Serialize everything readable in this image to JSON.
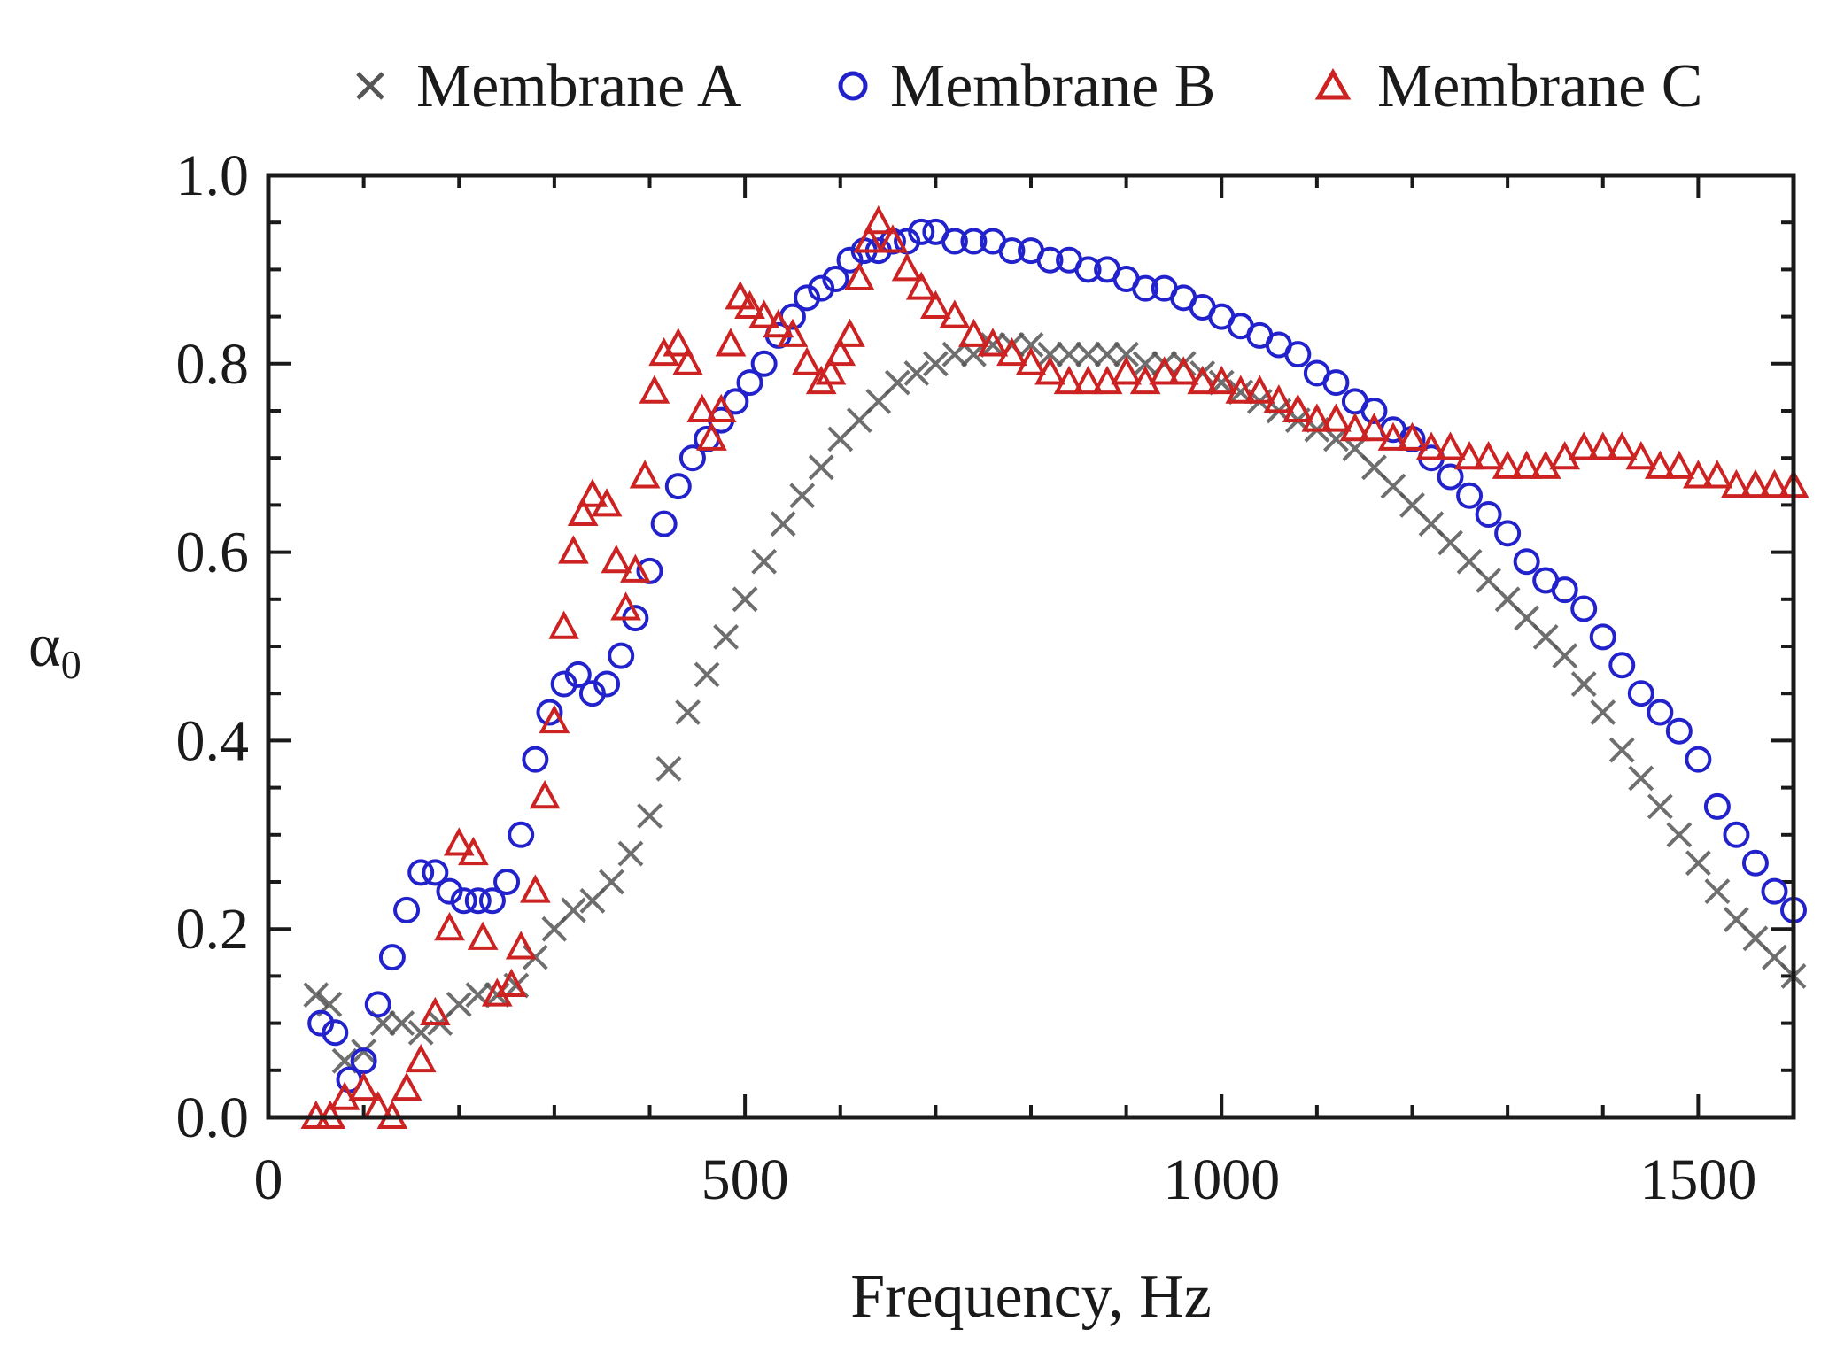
{
  "chart_data": {
    "type": "scatter",
    "title": "",
    "xlabel": "Frequency, Hz",
    "ylabel": "α",
    "ylabel_subscript": "0",
    "xlim": [
      0,
      1600
    ],
    "ylim": [
      0.0,
      1.0
    ],
    "x_ticks": [
      0,
      500,
      1000,
      1500
    ],
    "x_tick_labels": [
      "0",
      "500",
      "1000",
      "1500"
    ],
    "y_ticks": [
      0.0,
      0.2,
      0.4,
      0.6,
      0.8,
      1.0
    ],
    "y_tick_labels": [
      "0.0",
      "0.2",
      "0.4",
      "0.6",
      "0.8",
      "1.0"
    ],
    "grid": false,
    "legend_position": "top",
    "series": [
      {
        "name": "Membrane A",
        "marker": "x",
        "color": "#555555",
        "points": [
          [
            50,
            0.13
          ],
          [
            64,
            0.12
          ],
          [
            80,
            0.06
          ],
          [
            100,
            0.07
          ],
          [
            120,
            0.1
          ],
          [
            140,
            0.1
          ],
          [
            160,
            0.09
          ],
          [
            180,
            0.1
          ],
          [
            200,
            0.12
          ],
          [
            220,
            0.13
          ],
          [
            240,
            0.13
          ],
          [
            260,
            0.14
          ],
          [
            280,
            0.17
          ],
          [
            300,
            0.2
          ],
          [
            320,
            0.22
          ],
          [
            340,
            0.23
          ],
          [
            360,
            0.25
          ],
          [
            380,
            0.28
          ],
          [
            400,
            0.32
          ],
          [
            420,
            0.37
          ],
          [
            440,
            0.43
          ],
          [
            460,
            0.47
          ],
          [
            480,
            0.51
          ],
          [
            500,
            0.55
          ],
          [
            520,
            0.59
          ],
          [
            540,
            0.63
          ],
          [
            560,
            0.66
          ],
          [
            580,
            0.69
          ],
          [
            600,
            0.72
          ],
          [
            620,
            0.74
          ],
          [
            640,
            0.76
          ],
          [
            660,
            0.78
          ],
          [
            680,
            0.79
          ],
          [
            700,
            0.8
          ],
          [
            720,
            0.81
          ],
          [
            740,
            0.81
          ],
          [
            760,
            0.82
          ],
          [
            780,
            0.82
          ],
          [
            800,
            0.82
          ],
          [
            820,
            0.81
          ],
          [
            840,
            0.81
          ],
          [
            860,
            0.81
          ],
          [
            880,
            0.81
          ],
          [
            900,
            0.81
          ],
          [
            920,
            0.8
          ],
          [
            940,
            0.8
          ],
          [
            960,
            0.8
          ],
          [
            980,
            0.79
          ],
          [
            1000,
            0.78
          ],
          [
            1020,
            0.77
          ],
          [
            1040,
            0.76
          ],
          [
            1060,
            0.75
          ],
          [
            1080,
            0.74
          ],
          [
            1100,
            0.73
          ],
          [
            1120,
            0.72
          ],
          [
            1140,
            0.71
          ],
          [
            1160,
            0.69
          ],
          [
            1180,
            0.67
          ],
          [
            1200,
            0.65
          ],
          [
            1220,
            0.63
          ],
          [
            1240,
            0.61
          ],
          [
            1260,
            0.59
          ],
          [
            1280,
            0.57
          ],
          [
            1300,
            0.55
          ],
          [
            1320,
            0.53
          ],
          [
            1340,
            0.51
          ],
          [
            1360,
            0.49
          ],
          [
            1380,
            0.46
          ],
          [
            1400,
            0.43
          ],
          [
            1420,
            0.39
          ],
          [
            1440,
            0.36
          ],
          [
            1460,
            0.33
          ],
          [
            1480,
            0.3
          ],
          [
            1500,
            0.27
          ],
          [
            1520,
            0.24
          ],
          [
            1540,
            0.21
          ],
          [
            1560,
            0.19
          ],
          [
            1580,
            0.17
          ],
          [
            1600,
            0.15
          ]
        ]
      },
      {
        "name": "Membrane B",
        "marker": "circle",
        "color": "#2222cc",
        "points": [
          [
            55,
            0.1
          ],
          [
            70,
            0.09
          ],
          [
            85,
            0.04
          ],
          [
            100,
            0.06
          ],
          [
            115,
            0.12
          ],
          [
            130,
            0.17
          ],
          [
            145,
            0.22
          ],
          [
            160,
            0.26
          ],
          [
            175,
            0.26
          ],
          [
            190,
            0.24
          ],
          [
            205,
            0.23
          ],
          [
            220,
            0.23
          ],
          [
            235,
            0.23
          ],
          [
            250,
            0.25
          ],
          [
            265,
            0.3
          ],
          [
            280,
            0.38
          ],
          [
            295,
            0.43
          ],
          [
            310,
            0.46
          ],
          [
            325,
            0.47
          ],
          [
            340,
            0.45
          ],
          [
            355,
            0.46
          ],
          [
            370,
            0.49
          ],
          [
            385,
            0.53
          ],
          [
            400,
            0.58
          ],
          [
            415,
            0.63
          ],
          [
            430,
            0.67
          ],
          [
            445,
            0.7
          ],
          [
            460,
            0.72
          ],
          [
            475,
            0.74
          ],
          [
            490,
            0.76
          ],
          [
            505,
            0.78
          ],
          [
            520,
            0.8
          ],
          [
            535,
            0.83
          ],
          [
            550,
            0.85
          ],
          [
            565,
            0.87
          ],
          [
            580,
            0.88
          ],
          [
            595,
            0.89
          ],
          [
            610,
            0.91
          ],
          [
            625,
            0.92
          ],
          [
            640,
            0.92
          ],
          [
            655,
            0.93
          ],
          [
            670,
            0.93
          ],
          [
            685,
            0.94
          ],
          [
            700,
            0.94
          ],
          [
            720,
            0.93
          ],
          [
            740,
            0.93
          ],
          [
            760,
            0.93
          ],
          [
            780,
            0.92
          ],
          [
            800,
            0.92
          ],
          [
            820,
            0.91
          ],
          [
            840,
            0.91
          ],
          [
            860,
            0.9
          ],
          [
            880,
            0.9
          ],
          [
            900,
            0.89
          ],
          [
            920,
            0.88
          ],
          [
            940,
            0.88
          ],
          [
            960,
            0.87
          ],
          [
            980,
            0.86
          ],
          [
            1000,
            0.85
          ],
          [
            1020,
            0.84
          ],
          [
            1040,
            0.83
          ],
          [
            1060,
            0.82
          ],
          [
            1080,
            0.81
          ],
          [
            1100,
            0.79
          ],
          [
            1120,
            0.78
          ],
          [
            1140,
            0.76
          ],
          [
            1160,
            0.75
          ],
          [
            1180,
            0.73
          ],
          [
            1200,
            0.72
          ],
          [
            1220,
            0.7
          ],
          [
            1240,
            0.68
          ],
          [
            1260,
            0.66
          ],
          [
            1280,
            0.64
          ],
          [
            1300,
            0.62
          ],
          [
            1320,
            0.59
          ],
          [
            1340,
            0.57
          ],
          [
            1360,
            0.56
          ],
          [
            1380,
            0.54
          ],
          [
            1400,
            0.51
          ],
          [
            1420,
            0.48
          ],
          [
            1440,
            0.45
          ],
          [
            1460,
            0.43
          ],
          [
            1480,
            0.41
          ],
          [
            1500,
            0.38
          ],
          [
            1520,
            0.33
          ],
          [
            1540,
            0.3
          ],
          [
            1560,
            0.27
          ],
          [
            1580,
            0.24
          ],
          [
            1600,
            0.22
          ]
        ]
      },
      {
        "name": "Membrane C",
        "marker": "triangle",
        "color": "#cc2222",
        "points": [
          [
            50,
            0.0
          ],
          [
            65,
            0.0
          ],
          [
            80,
            0.02
          ],
          [
            100,
            0.03
          ],
          [
            115,
            0.01
          ],
          [
            130,
            0.0
          ],
          [
            145,
            0.03
          ],
          [
            160,
            0.06
          ],
          [
            175,
            0.11
          ],
          [
            190,
            0.2
          ],
          [
            200,
            0.29
          ],
          [
            215,
            0.28
          ],
          [
            225,
            0.19
          ],
          [
            240,
            0.13
          ],
          [
            255,
            0.14
          ],
          [
            265,
            0.18
          ],
          [
            280,
            0.24
          ],
          [
            290,
            0.34
          ],
          [
            300,
            0.42
          ],
          [
            310,
            0.52
          ],
          [
            320,
            0.6
          ],
          [
            330,
            0.64
          ],
          [
            340,
            0.66
          ],
          [
            355,
            0.65
          ],
          [
            365,
            0.59
          ],
          [
            375,
            0.54
          ],
          [
            385,
            0.58
          ],
          [
            395,
            0.68
          ],
          [
            405,
            0.77
          ],
          [
            415,
            0.81
          ],
          [
            430,
            0.82
          ],
          [
            440,
            0.8
          ],
          [
            455,
            0.75
          ],
          [
            465,
            0.72
          ],
          [
            475,
            0.75
          ],
          [
            485,
            0.82
          ],
          [
            495,
            0.87
          ],
          [
            505,
            0.86
          ],
          [
            520,
            0.85
          ],
          [
            535,
            0.84
          ],
          [
            550,
            0.83
          ],
          [
            565,
            0.8
          ],
          [
            580,
            0.78
          ],
          [
            590,
            0.79
          ],
          [
            600,
            0.81
          ],
          [
            610,
            0.83
          ],
          [
            620,
            0.89
          ],
          [
            630,
            0.93
          ],
          [
            640,
            0.95
          ],
          [
            655,
            0.93
          ],
          [
            670,
            0.9
          ],
          [
            685,
            0.88
          ],
          [
            700,
            0.86
          ],
          [
            720,
            0.85
          ],
          [
            740,
            0.83
          ],
          [
            760,
            0.82
          ],
          [
            780,
            0.81
          ],
          [
            800,
            0.8
          ],
          [
            820,
            0.79
          ],
          [
            840,
            0.78
          ],
          [
            860,
            0.78
          ],
          [
            880,
            0.78
          ],
          [
            900,
            0.79
          ],
          [
            920,
            0.78
          ],
          [
            940,
            0.79
          ],
          [
            960,
            0.79
          ],
          [
            980,
            0.78
          ],
          [
            1000,
            0.78
          ],
          [
            1020,
            0.77
          ],
          [
            1040,
            0.77
          ],
          [
            1060,
            0.76
          ],
          [
            1080,
            0.75
          ],
          [
            1100,
            0.74
          ],
          [
            1120,
            0.74
          ],
          [
            1140,
            0.73
          ],
          [
            1160,
            0.73
          ],
          [
            1180,
            0.72
          ],
          [
            1200,
            0.72
          ],
          [
            1220,
            0.71
          ],
          [
            1240,
            0.71
          ],
          [
            1260,
            0.7
          ],
          [
            1280,
            0.7
          ],
          [
            1300,
            0.69
          ],
          [
            1320,
            0.69
          ],
          [
            1340,
            0.69
          ],
          [
            1360,
            0.7
          ],
          [
            1380,
            0.71
          ],
          [
            1400,
            0.71
          ],
          [
            1420,
            0.71
          ],
          [
            1440,
            0.7
          ],
          [
            1460,
            0.69
          ],
          [
            1480,
            0.69
          ],
          [
            1500,
            0.68
          ],
          [
            1520,
            0.68
          ],
          [
            1540,
            0.67
          ],
          [
            1560,
            0.67
          ],
          [
            1580,
            0.67
          ],
          [
            1600,
            0.67
          ]
        ]
      }
    ]
  }
}
